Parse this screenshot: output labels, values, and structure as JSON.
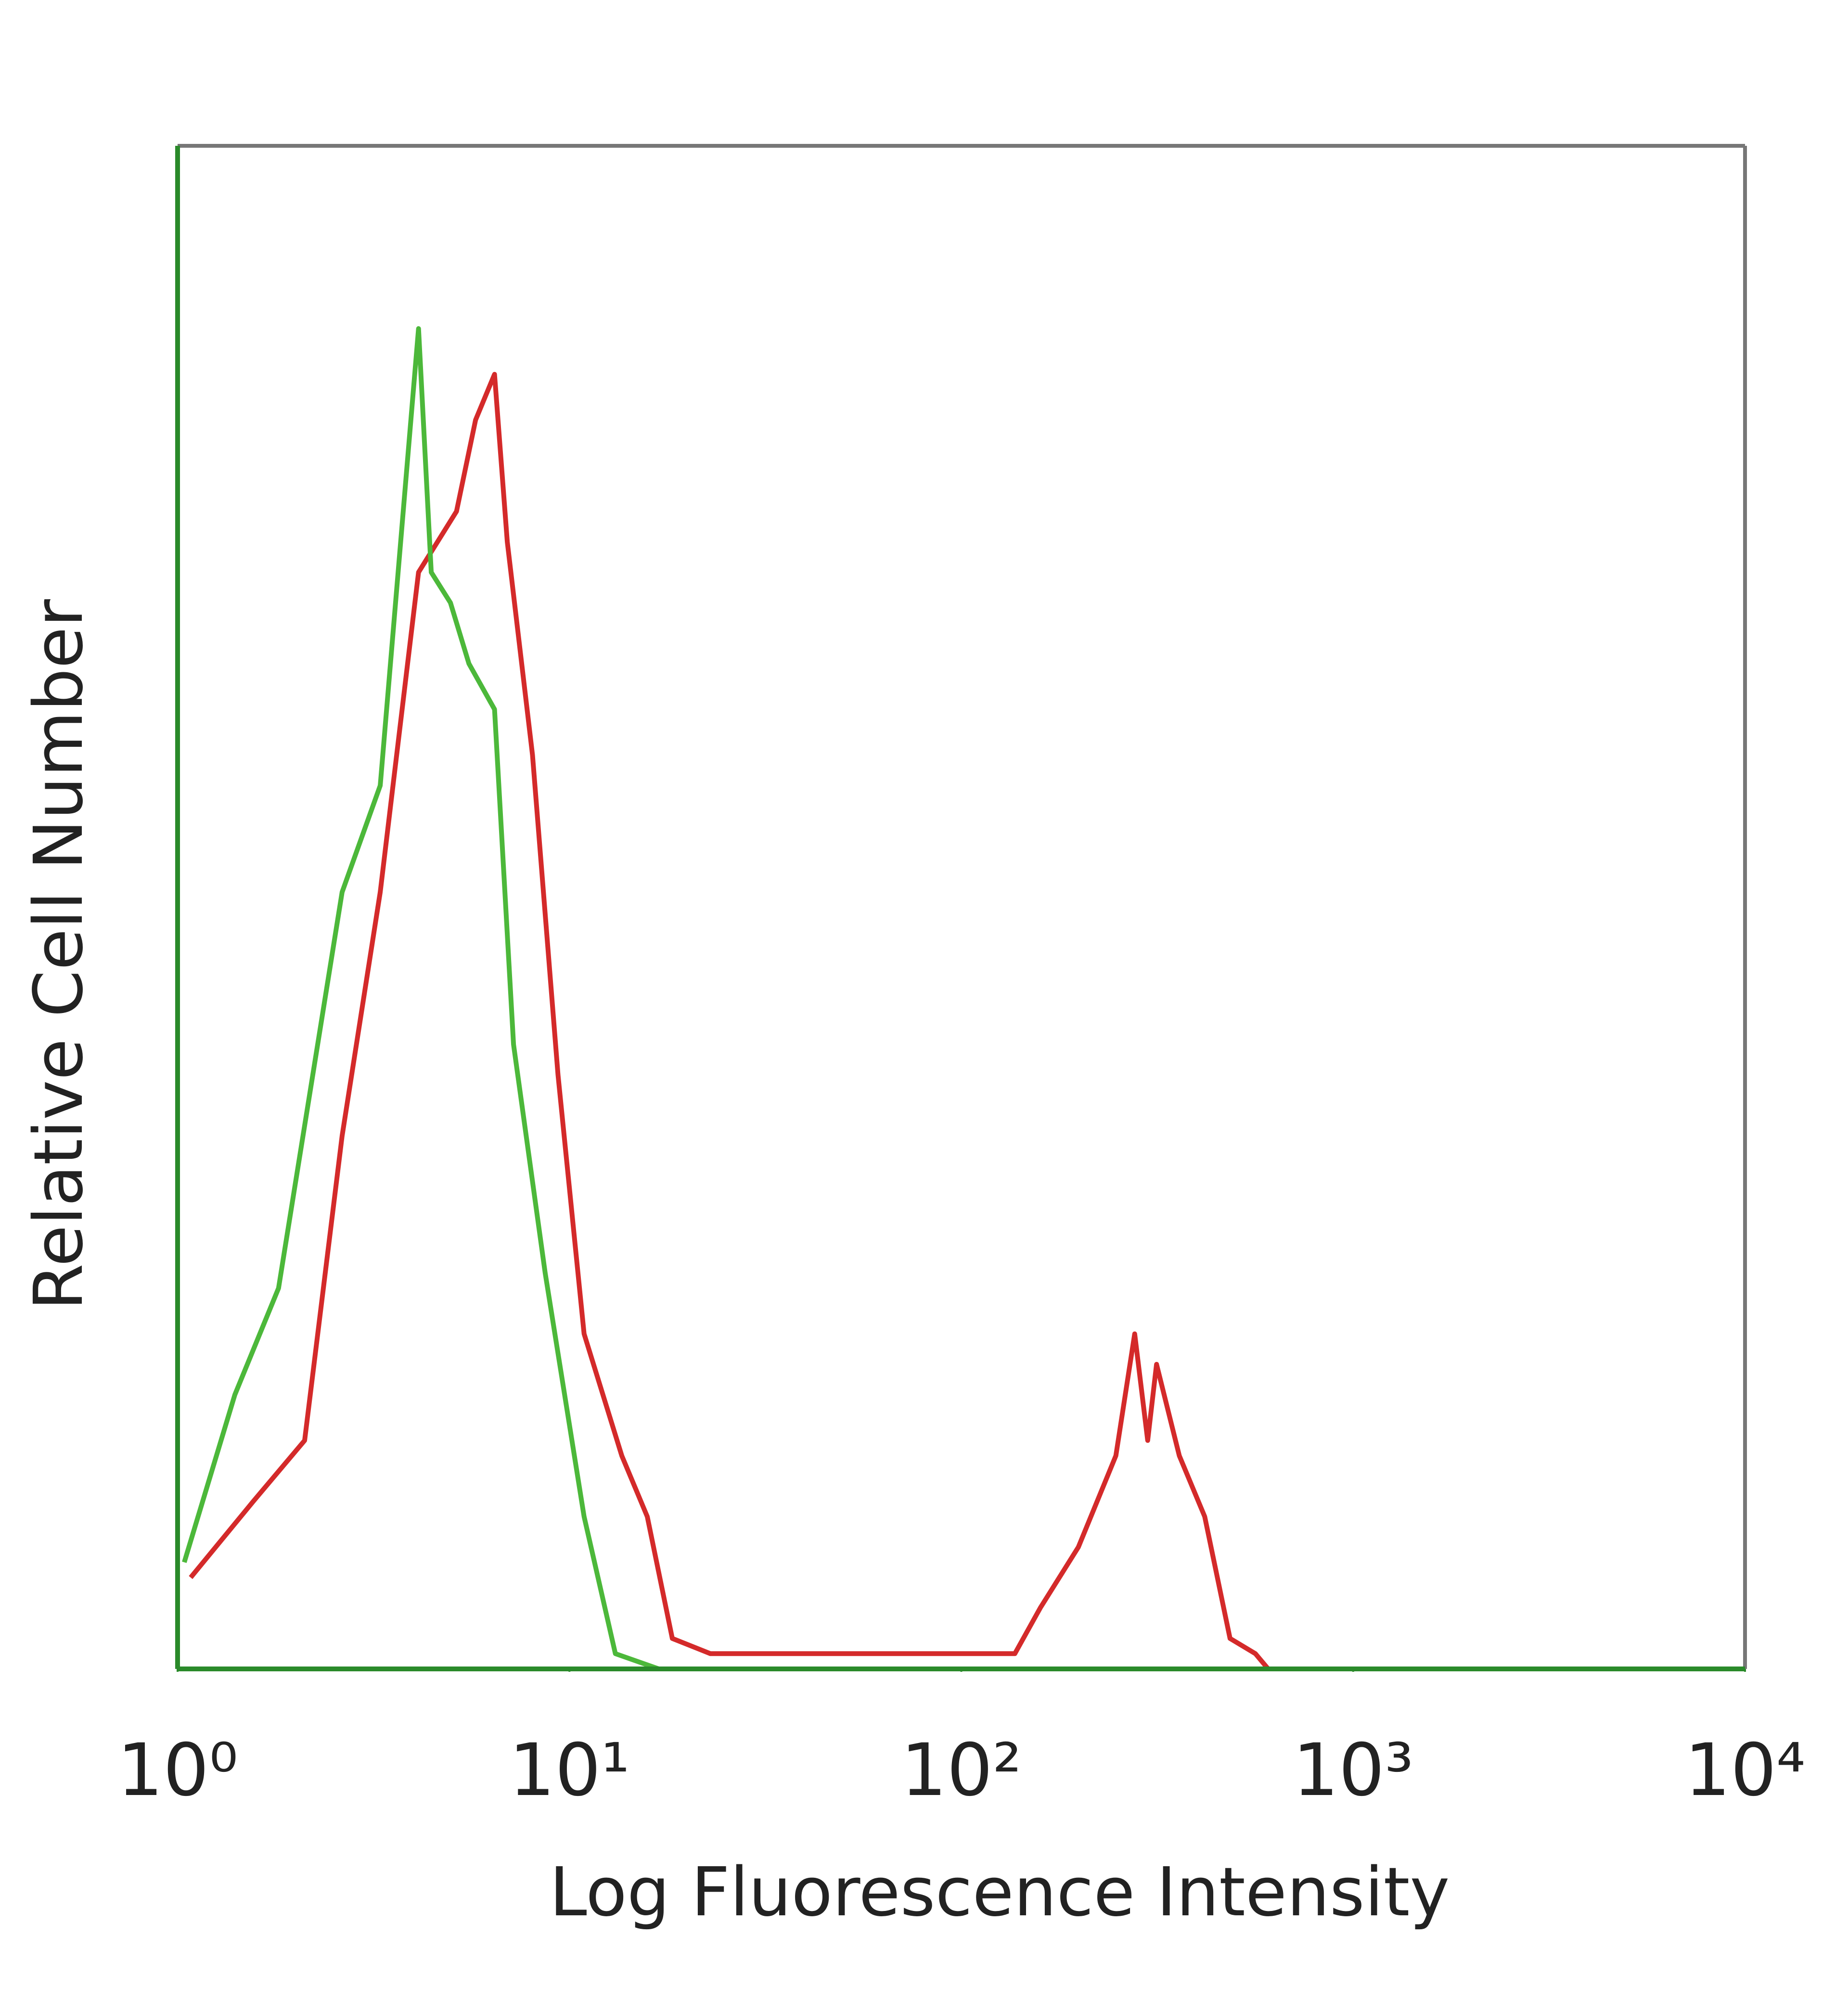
{
  "chart_data": {
    "type": "line",
    "xlabel": "Log Fluorescence Intensity",
    "ylabel": "Relative Cell Number",
    "xscale": "log",
    "xlim": [
      1,
      10000
    ],
    "xticks": [
      {
        "value": 1,
        "label": "10⁰"
      },
      {
        "value": 10,
        "label": "10¹"
      },
      {
        "value": 100,
        "label": "10²"
      },
      {
        "value": 1000,
        "label": "10³"
      },
      {
        "value": 10000,
        "label": "10⁴"
      }
    ],
    "ylim": [
      0,
      100
    ],
    "series": [
      {
        "color": "#d42a2a",
        "x": [
          1.08,
          1.56,
          2.11,
          2.63,
          3.29,
          4.12,
          5.15,
          5.76,
          6.44,
          6.94,
          8.05,
          9.35,
          10.9,
          13.6,
          15.8,
          18.3,
          22.9,
          44.7,
          137,
          159,
          199,
          248,
          277,
          299,
          315,
          360,
          418,
          485,
          563,
          607
        ],
        "values": [
          6,
          11,
          15,
          35,
          51,
          72,
          76,
          82,
          85,
          74,
          60,
          39,
          22,
          14,
          10,
          2,
          1,
          1,
          1,
          4,
          8,
          14,
          22,
          15,
          20,
          14,
          10,
          2,
          1,
          0
        ]
      },
      {
        "color": "#4cb83a",
        "x": [
          1.04,
          1.4,
          1.81,
          2.63,
          3.29,
          4.12,
          4.44,
          4.97,
          5.54,
          6.44,
          7.2,
          8.67,
          10.9,
          13.1,
          16.9
        ],
        "values": [
          7,
          18,
          25,
          51,
          58,
          88,
          72,
          70,
          66,
          63,
          41,
          26,
          10,
          1,
          0
        ]
      }
    ]
  }
}
